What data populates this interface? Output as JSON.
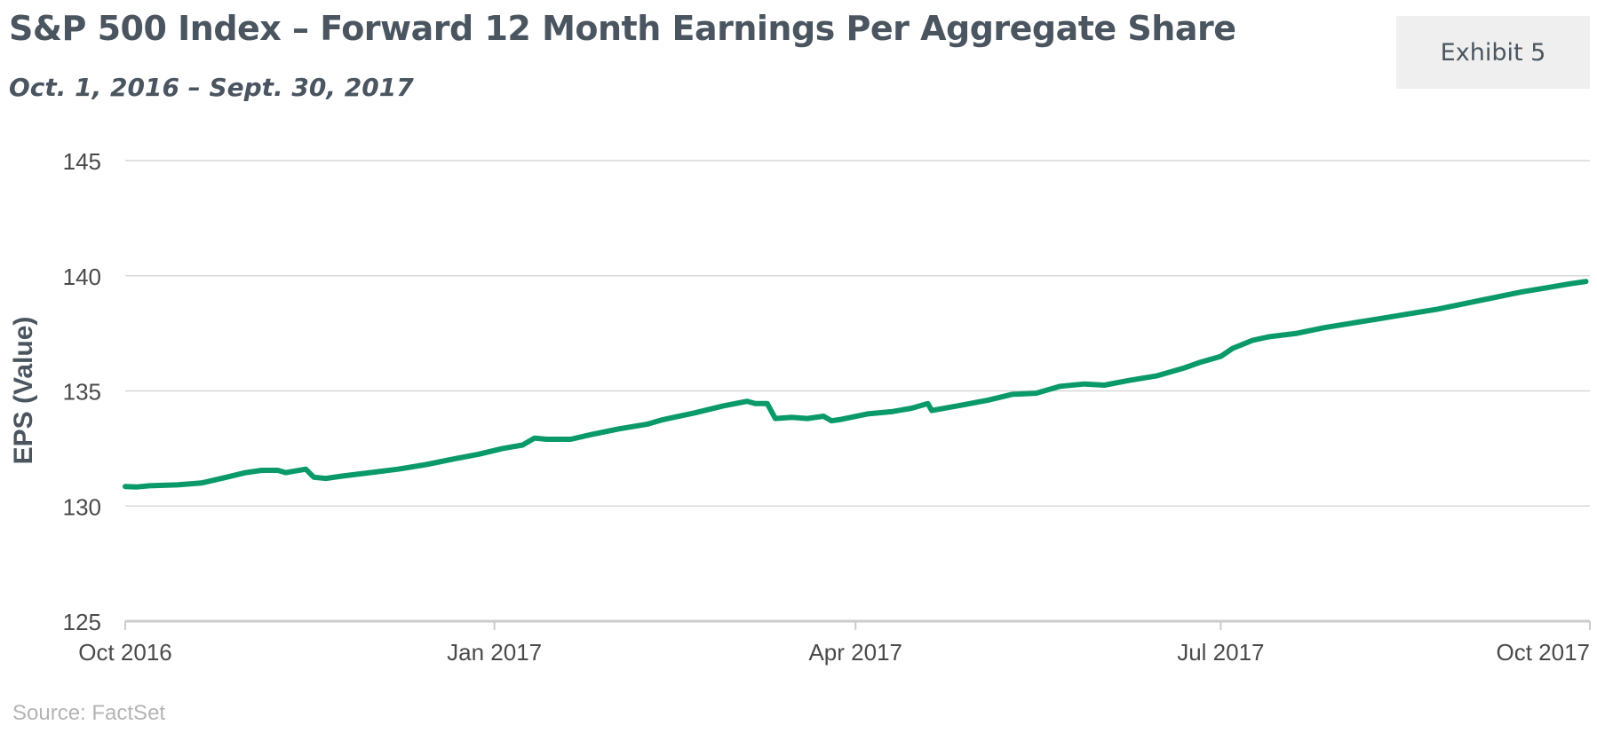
{
  "header": {
    "title": "S&P 500 Index – Forward 12 Month Earnings Per Aggregate Share",
    "subtitle": "Oct. 1, 2016 – Sept. 30, 2017",
    "badge": "Exhibit 5"
  },
  "footer": {
    "source": "Source: FactSet"
  },
  "chart_data": {
    "type": "line",
    "title": "S&P 500 Index – Forward 12 Month Earnings Per Aggregate Share",
    "subtitle": "Oct. 1, 2016 – Sept. 30, 2017",
    "xlabel": "",
    "ylabel": "EPS (Value)",
    "ylim": [
      125,
      145
    ],
    "y_ticks": [
      125,
      130,
      135,
      140,
      145
    ],
    "xlim": [
      "2016-10-01",
      "2017-10-01"
    ],
    "x_ticks": [
      {
        "date": "2016-10-01",
        "label": "Oct 2016"
      },
      {
        "date": "2017-01-01",
        "label": "Jan 2017"
      },
      {
        "date": "2017-04-01",
        "label": "Apr 2017"
      },
      {
        "date": "2017-07-01",
        "label": "Jul 2017"
      },
      {
        "date": "2017-10-01",
        "label": "Oct 2017"
      }
    ],
    "grid": true,
    "line_color": "#0a9a6a",
    "series": [
      {
        "points": [
          [
            "2016-10-01",
            130.85
          ],
          [
            "2016-10-04",
            130.83
          ],
          [
            "2016-10-07",
            130.88
          ],
          [
            "2016-10-14",
            130.92
          ],
          [
            "2016-10-20",
            131.0
          ],
          [
            "2016-10-25",
            131.2
          ],
          [
            "2016-10-31",
            131.45
          ],
          [
            "2016-11-04",
            131.55
          ],
          [
            "2016-11-08",
            131.55
          ],
          [
            "2016-11-10",
            131.45
          ],
          [
            "2016-11-15",
            131.6
          ],
          [
            "2016-11-17",
            131.25
          ],
          [
            "2016-11-20",
            131.2
          ],
          [
            "2016-11-24",
            131.3
          ],
          [
            "2016-12-01",
            131.45
          ],
          [
            "2016-12-08",
            131.6
          ],
          [
            "2016-12-15",
            131.8
          ],
          [
            "2016-12-22",
            132.05
          ],
          [
            "2016-12-28",
            132.25
          ],
          [
            "2017-01-03",
            132.5
          ],
          [
            "2017-01-08",
            132.65
          ],
          [
            "2017-01-11",
            132.95
          ],
          [
            "2017-01-14",
            132.9
          ],
          [
            "2017-01-20",
            132.9
          ],
          [
            "2017-01-25",
            133.1
          ],
          [
            "2017-02-01",
            133.35
          ],
          [
            "2017-02-08",
            133.55
          ],
          [
            "2017-02-12",
            133.75
          ],
          [
            "2017-02-20",
            134.05
          ],
          [
            "2017-02-27",
            134.35
          ],
          [
            "2017-03-05",
            134.55
          ],
          [
            "2017-03-07",
            134.45
          ],
          [
            "2017-03-10",
            134.45
          ],
          [
            "2017-03-12",
            133.8
          ],
          [
            "2017-03-16",
            133.85
          ],
          [
            "2017-03-20",
            133.8
          ],
          [
            "2017-03-24",
            133.9
          ],
          [
            "2017-03-26",
            133.7
          ],
          [
            "2017-03-28",
            133.75
          ],
          [
            "2017-04-04",
            134.0
          ],
          [
            "2017-04-10",
            134.1
          ],
          [
            "2017-04-15",
            134.25
          ],
          [
            "2017-04-19",
            134.45
          ],
          [
            "2017-04-20",
            134.15
          ],
          [
            "2017-04-28",
            134.4
          ],
          [
            "2017-05-04",
            134.6
          ],
          [
            "2017-05-10",
            134.85
          ],
          [
            "2017-05-16",
            134.9
          ],
          [
            "2017-05-22",
            135.2
          ],
          [
            "2017-05-28",
            135.3
          ],
          [
            "2017-06-02",
            135.25
          ],
          [
            "2017-06-08",
            135.45
          ],
          [
            "2017-06-15",
            135.65
          ],
          [
            "2017-06-22",
            136.0
          ],
          [
            "2017-06-26",
            136.25
          ],
          [
            "2017-07-01",
            136.5
          ],
          [
            "2017-07-04",
            136.85
          ],
          [
            "2017-07-09",
            137.2
          ],
          [
            "2017-07-13",
            137.35
          ],
          [
            "2017-07-20",
            137.5
          ],
          [
            "2017-07-27",
            137.75
          ],
          [
            "2017-08-03",
            137.95
          ],
          [
            "2017-08-10",
            138.15
          ],
          [
            "2017-08-17",
            138.35
          ],
          [
            "2017-08-24",
            138.55
          ],
          [
            "2017-08-31",
            138.8
          ],
          [
            "2017-09-07",
            139.05
          ],
          [
            "2017-09-14",
            139.3
          ],
          [
            "2017-09-21",
            139.5
          ],
          [
            "2017-09-26",
            139.65
          ],
          [
            "2017-09-30",
            139.75
          ]
        ]
      }
    ]
  }
}
